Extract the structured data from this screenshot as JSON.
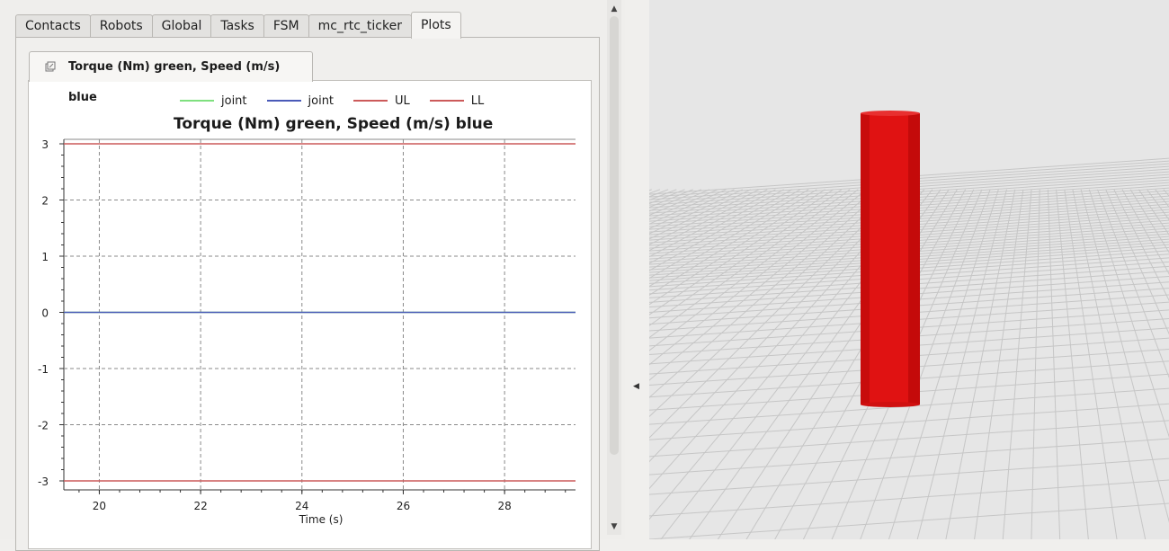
{
  "tabs": [
    "Contacts",
    "Robots",
    "Global",
    "Tasks",
    "FSM",
    "mc_rtc_ticker",
    "Plots"
  ],
  "active_tab": "Plots",
  "plot_tab_label": "Torque (Nm) green, Speed (m/s) blue",
  "icons": {
    "plot_tab": "plot-window-icon",
    "scroll_up": "scroll-up-icon",
    "scroll_down": "scroll-down-icon",
    "splitter": "collapse-arrow-icon"
  },
  "colors": {
    "cylinder": "#e01010",
    "grid_line": "#c8c8c8",
    "floor": "#e6e6e6"
  },
  "chart_data": {
    "type": "line",
    "title": "Torque (Nm) green, Speed (m/s) blue",
    "xlabel": "Time (s)",
    "ylabel": "",
    "xlim": [
      19.3,
      29.4
    ],
    "ylim": [
      -3.0,
      3.1
    ],
    "xticks": [
      20,
      22,
      24,
      26,
      28
    ],
    "yticks": [
      3,
      2,
      1,
      0,
      -1,
      -2,
      -3
    ],
    "grid": true,
    "legend_position": "top",
    "series": [
      {
        "name": "joint",
        "color": "#7fe07f",
        "x": [
          19.3,
          29.4
        ],
        "y": [
          0,
          0
        ]
      },
      {
        "name": "joint",
        "color": "#4a5ab8",
        "x": [
          19.3,
          29.4
        ],
        "y": [
          0,
          0
        ]
      },
      {
        "name": "UL",
        "color": "#cc5a5a",
        "x": [
          19.3,
          29.4
        ],
        "y": [
          3,
          3
        ]
      },
      {
        "name": "LL",
        "color": "#cc5a5a",
        "x": [
          19.3,
          29.4
        ],
        "y": [
          -3,
          -3
        ]
      }
    ]
  }
}
